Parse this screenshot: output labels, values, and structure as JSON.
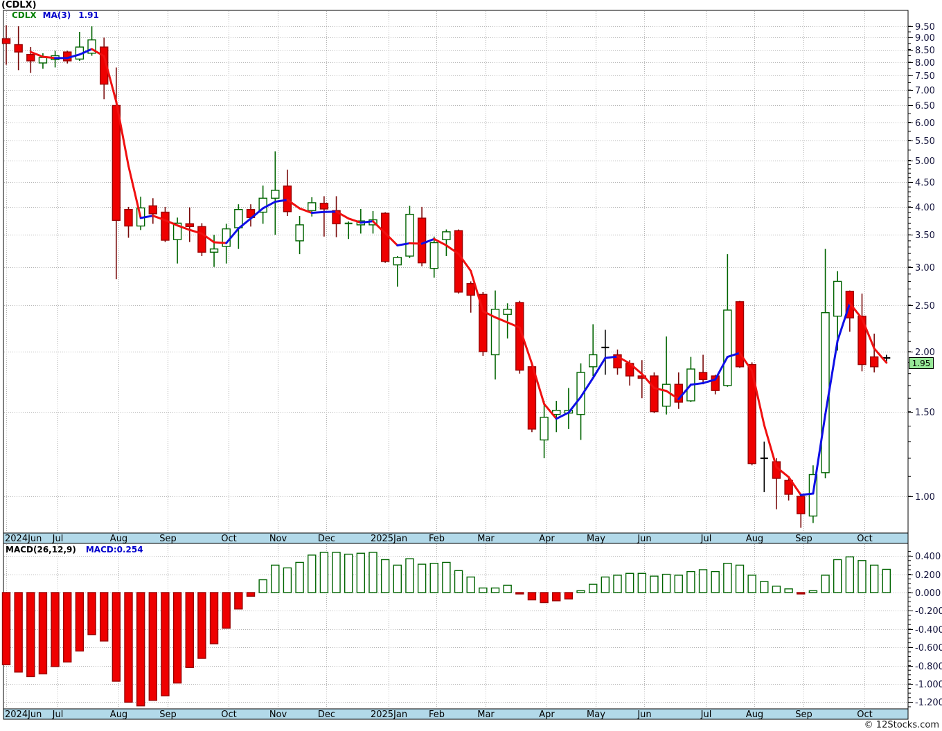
{
  "header": {
    "title": "(CDLX)"
  },
  "price_panel": {
    "legend": {
      "symbol": "CDLX",
      "ma_label": "MA(3)",
      "ma_value": "1.91"
    },
    "last_price_tag": "1.95",
    "axis_labels": [
      "9.50",
      "9.00",
      "8.50",
      "8.00",
      "7.50",
      "7.00",
      "6.50",
      "6.00",
      "5.50",
      "5.00",
      "4.50",
      "4.00",
      "3.50",
      "3.00",
      "2.50",
      "2.00",
      "1.50",
      "1.00"
    ]
  },
  "macd_panel": {
    "legend": {
      "label": "MACD(26,12,9)",
      "value": "MACD:0.254"
    },
    "axis_labels": [
      "0.400",
      "0.200",
      "0.000",
      "-0.200",
      "-0.400",
      "-0.600",
      "-0.800",
      "-1.000",
      "-1.200"
    ]
  },
  "timeline": {
    "months": [
      {
        "label": "2024Jun",
        "i": 0,
        "align": "left"
      },
      {
        "label": "Jul",
        "i": 4.2
      },
      {
        "label": "Aug",
        "i": 9.2
      },
      {
        "label": "Sep",
        "i": 13.2
      },
      {
        "label": "Oct",
        "i": 18.2
      },
      {
        "label": "Nov",
        "i": 22.2
      },
      {
        "label": "Dec",
        "i": 26.2
      },
      {
        "label": "2025Jan",
        "i": 31.3
      },
      {
        "label": "Feb",
        "i": 35.2
      },
      {
        "label": "Mar",
        "i": 39.2
      },
      {
        "label": "Apr",
        "i": 44.2
      },
      {
        "label": "May",
        "i": 48.2
      },
      {
        "label": "Jun",
        "i": 52.2
      },
      {
        "label": "Jul",
        "i": 57.2
      },
      {
        "label": "Aug",
        "i": 61.2
      },
      {
        "label": "Sep",
        "i": 65.2
      },
      {
        "label": "Oct",
        "i": 70.2
      }
    ]
  },
  "watermark": "© 12Stocks.com",
  "colors": {
    "up_border": "#006400",
    "up_fill": "#ffffff",
    "up_wick": "#006400",
    "down_fill": "#ee0000",
    "down_border": "#990000",
    "down_wick": "#7a0a0a",
    "doji": "#000000",
    "ma_up": "#0f0fe6",
    "ma_down": "#f01010",
    "grid": "#b3b3b3",
    "panel_border": "#000000",
    "timeline_bg": "#b2d9e9",
    "axis_text": "#14143c",
    "month_text": "#000000",
    "tag_bg": "#97e897"
  },
  "chart_data": [
    {
      "type": "candlestick",
      "title": "(CDLX)",
      "symbol": "CDLX",
      "interval": "weekly",
      "y_scale": "log",
      "ylim": [
        0.85,
        9.8
      ],
      "overlay": {
        "name": "MA(3)",
        "last_value": 1.91
      },
      "last_close": 1.95,
      "black_dojis": [
        49,
        62,
        72
      ],
      "candles": [
        [
          8.95,
          9.55,
          7.9,
          8.75
        ],
        [
          8.7,
          9.5,
          7.7,
          8.4
        ],
        [
          8.3,
          8.6,
          7.6,
          8.05
        ],
        [
          7.97,
          8.35,
          7.75,
          8.18
        ],
        [
          8.1,
          8.45,
          7.8,
          8.25
        ],
        [
          8.4,
          8.45,
          7.95,
          8.05
        ],
        [
          8.12,
          9.25,
          8.05,
          8.6
        ],
        [
          8.35,
          9.5,
          8.25,
          8.9
        ],
        [
          8.6,
          9.0,
          6.7,
          7.2
        ],
        [
          6.5,
          7.8,
          2.83,
          3.75
        ],
        [
          3.95,
          4.0,
          3.45,
          3.65
        ],
        [
          3.65,
          4.2,
          3.58,
          3.98
        ],
        [
          4.02,
          4.17,
          3.69,
          3.87
        ],
        [
          3.9,
          4.0,
          3.38,
          3.41
        ],
        [
          3.42,
          3.8,
          3.05,
          3.7
        ],
        [
          3.69,
          3.99,
          3.38,
          3.64
        ],
        [
          3.64,
          3.7,
          3.16,
          3.22
        ],
        [
          3.22,
          3.5,
          3.0,
          3.27
        ],
        [
          3.31,
          3.69,
          3.05,
          3.6
        ],
        [
          3.62,
          4.05,
          3.27,
          3.95
        ],
        [
          3.95,
          4.05,
          3.64,
          3.8
        ],
        [
          3.9,
          4.43,
          3.69,
          4.17
        ],
        [
          4.17,
          5.22,
          3.5,
          4.33
        ],
        [
          4.42,
          4.78,
          3.83,
          3.91
        ],
        [
          3.4,
          3.83,
          3.19,
          3.67
        ],
        [
          3.93,
          4.19,
          3.82,
          4.08
        ],
        [
          4.07,
          4.21,
          3.47,
          3.96
        ],
        [
          3.93,
          4.21,
          3.46,
          3.69
        ],
        [
          3.69,
          3.73,
          3.43,
          3.7
        ],
        [
          3.67,
          3.96,
          3.52,
          3.74
        ],
        [
          3.67,
          3.92,
          3.52,
          3.76
        ],
        [
          3.88,
          3.9,
          3.06,
          3.08
        ],
        [
          3.03,
          3.16,
          2.73,
          3.14
        ],
        [
          3.16,
          4.02,
          3.13,
          3.86
        ],
        [
          3.79,
          4.0,
          3.01,
          3.06
        ],
        [
          2.98,
          3.47,
          2.85,
          3.37
        ],
        [
          3.42,
          3.59,
          3.16,
          3.55
        ],
        [
          3.57,
          3.59,
          2.64,
          2.66
        ],
        [
          2.77,
          2.8,
          2.41,
          2.62
        ],
        [
          2.63,
          2.66,
          1.96,
          2.0
        ],
        [
          1.97,
          2.68,
          1.75,
          2.45
        ],
        [
          2.39,
          2.52,
          2.13,
          2.45
        ],
        [
          2.53,
          2.55,
          1.8,
          1.83
        ],
        [
          1.86,
          1.87,
          1.36,
          1.38
        ],
        [
          1.31,
          1.58,
          1.2,
          1.46
        ],
        [
          1.48,
          1.58,
          1.36,
          1.51
        ],
        [
          1.49,
          1.68,
          1.38,
          1.51
        ],
        [
          1.48,
          1.89,
          1.31,
          1.81
        ],
        [
          1.86,
          2.28,
          1.78,
          1.97
        ],
        [
          2.04,
          2.22,
          1.79,
          2.04
        ],
        [
          1.97,
          2.02,
          1.79,
          1.85
        ],
        [
          1.89,
          1.92,
          1.7,
          1.78
        ],
        [
          1.78,
          1.92,
          1.6,
          1.76
        ],
        [
          1.78,
          1.81,
          1.49,
          1.5
        ],
        [
          1.54,
          2.15,
          1.48,
          1.71
        ],
        [
          1.71,
          1.81,
          1.52,
          1.57
        ],
        [
          1.58,
          1.95,
          1.57,
          1.84
        ],
        [
          1.81,
          1.97,
          1.71,
          1.75
        ],
        [
          1.78,
          1.79,
          1.63,
          1.66
        ],
        [
          1.7,
          3.19,
          1.69,
          2.44
        ],
        [
          2.54,
          2.55,
          1.85,
          1.86
        ],
        [
          1.88,
          1.9,
          1.16,
          1.17
        ],
        [
          1.21,
          1.3,
          1.02,
          1.19
        ],
        [
          1.18,
          1.2,
          0.94,
          1.09
        ],
        [
          1.08,
          1.09,
          0.98,
          1.01
        ],
        [
          1.0,
          1.01,
          0.86,
          0.92
        ],
        [
          0.91,
          1.16,
          0.88,
          1.11
        ],
        [
          1.12,
          3.27,
          1.09,
          2.41
        ],
        [
          2.37,
          2.94,
          2.01,
          2.8
        ],
        [
          2.67,
          2.68,
          2.2,
          2.35
        ],
        [
          2.37,
          2.64,
          1.82,
          1.88
        ],
        [
          1.95,
          2.18,
          1.81,
          1.86
        ],
        [
          1.93,
          1.97,
          1.89,
          1.95
        ]
      ]
    },
    {
      "type": "bar",
      "name": "MACD(26,12,9)",
      "last_value": 0.254,
      "ylim": [
        -1.3,
        0.5
      ],
      "values": [
        -0.79,
        -0.87,
        -0.92,
        -0.89,
        -0.81,
        -0.76,
        -0.64,
        -0.46,
        -0.53,
        -0.97,
        -1.2,
        -1.24,
        -1.18,
        -1.13,
        -0.99,
        -0.82,
        -0.72,
        -0.56,
        -0.39,
        -0.18,
        -0.04,
        0.14,
        0.3,
        0.27,
        0.33,
        0.41,
        0.44,
        0.44,
        0.42,
        0.43,
        0.44,
        0.36,
        0.3,
        0.37,
        0.31,
        0.32,
        0.33,
        0.24,
        0.17,
        0.05,
        0.05,
        0.08,
        -0.01,
        -0.08,
        -0.11,
        -0.09,
        -0.07,
        0.02,
        0.09,
        0.17,
        0.19,
        0.21,
        0.21,
        0.18,
        0.2,
        0.19,
        0.23,
        0.25,
        0.23,
        0.32,
        0.3,
        0.19,
        0.12,
        0.07,
        0.04,
        -0.01,
        0.02,
        0.19,
        0.36,
        0.39,
        0.35,
        0.3,
        0.254
      ]
    }
  ]
}
